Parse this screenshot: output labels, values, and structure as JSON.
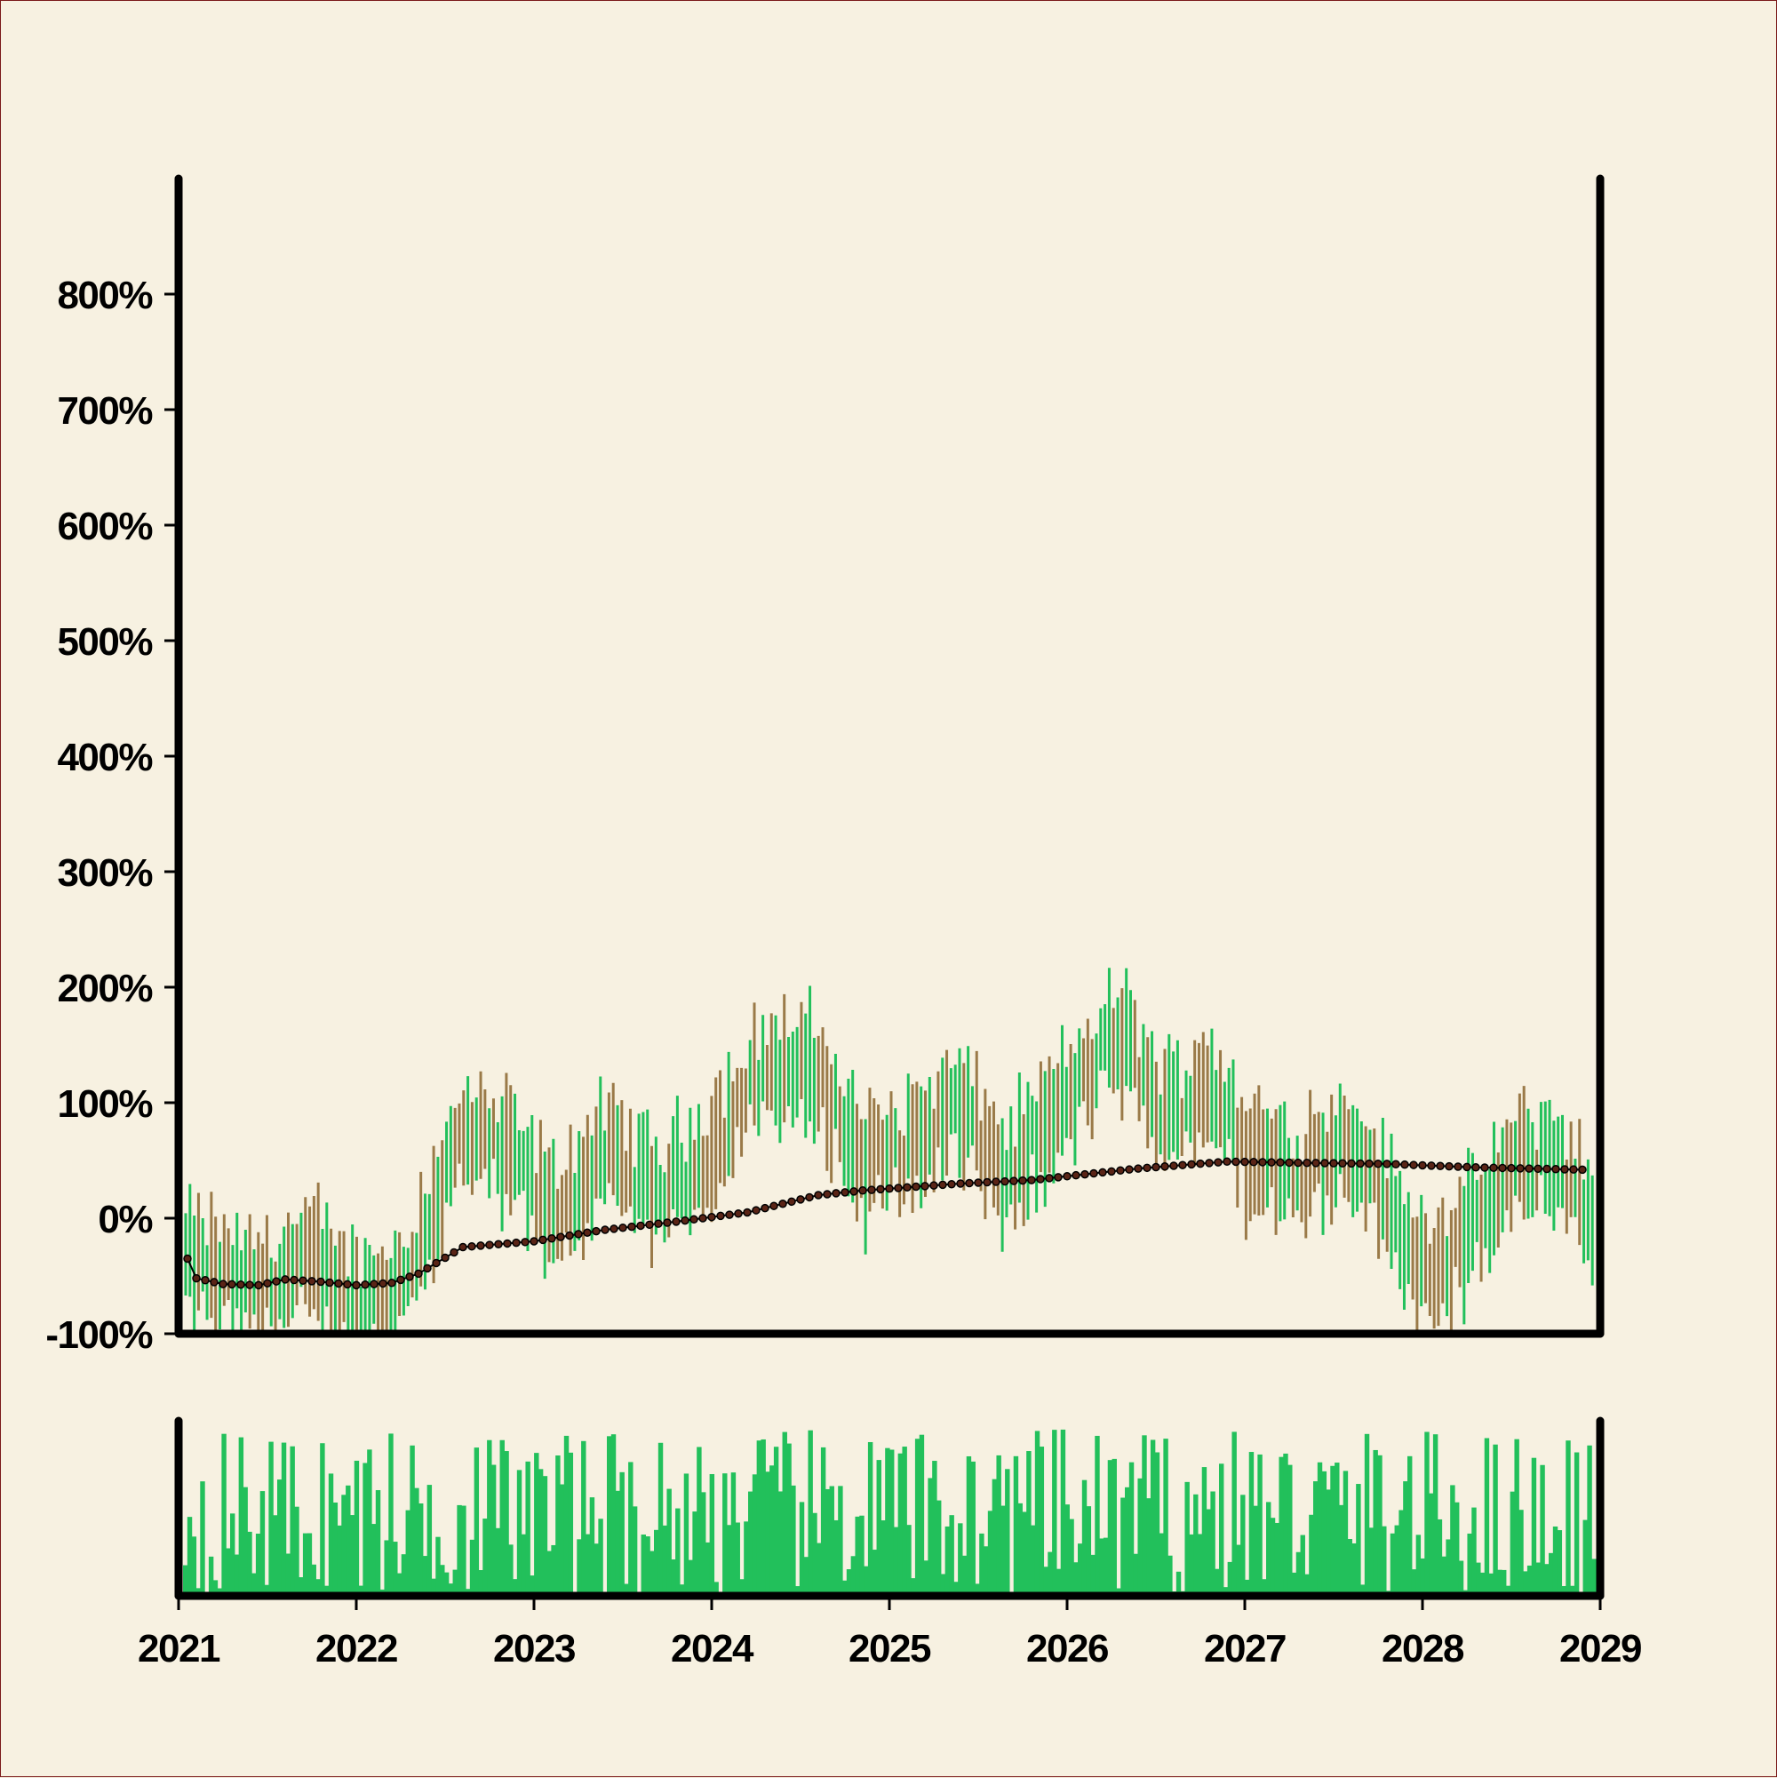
{
  "chart_data": [
    {
      "type": "ohlc",
      "panel": "price",
      "y_axis": {
        "ylim": [
          -100,
          900
        ],
        "ticks": [
          {
            "value": 800,
            "label": "800%"
          },
          {
            "value": 700,
            "label": "700%"
          },
          {
            "value": 600,
            "label": "600%"
          },
          {
            "value": 500,
            "label": "500%"
          },
          {
            "value": 400,
            "label": "400%"
          },
          {
            "value": 300,
            "label": "300%"
          },
          {
            "value": 200,
            "label": "200%"
          },
          {
            "value": 100,
            "label": "100%"
          },
          {
            "value": 0,
            "label": "0%"
          },
          {
            "value": -100,
            "label": "-100%"
          }
        ]
      },
      "x_axis": {
        "xlim": [
          2021,
          2029
        ],
        "ticks": [
          {
            "value": 2021,
            "label": "2021"
          },
          {
            "value": 2022,
            "label": "2022"
          },
          {
            "value": 2023,
            "label": "2023"
          },
          {
            "value": 2024,
            "label": "2024"
          },
          {
            "value": 2025,
            "label": "2025"
          },
          {
            "value": 2026,
            "label": "2026"
          },
          {
            "value": 2027,
            "label": "2027"
          },
          {
            "value": 2028,
            "label": "2028"
          },
          {
            "value": 2029,
            "label": "2029"
          }
        ]
      },
      "ohlc_trend_anchors": [
        [
          2021.0,
          -35
        ],
        [
          2021.4,
          -60
        ],
        [
          2021.8,
          -40
        ],
        [
          2022.0,
          -75
        ],
        [
          2022.25,
          -60
        ],
        [
          2022.6,
          70
        ],
        [
          2022.9,
          50
        ],
        [
          2023.1,
          0
        ],
        [
          2023.4,
          55
        ],
        [
          2023.7,
          20
        ],
        [
          2024.0,
          60
        ],
        [
          2024.3,
          130
        ],
        [
          2024.6,
          125
        ],
        [
          2024.85,
          45
        ],
        [
          2025.1,
          60
        ],
        [
          2025.4,
          95
        ],
        [
          2025.65,
          35
        ],
        [
          2026.0,
          100
        ],
        [
          2026.3,
          160
        ],
        [
          2026.55,
          85
        ],
        [
          2026.8,
          120
        ],
        [
          2027.0,
          55
        ],
        [
          2027.3,
          40
        ],
        [
          2027.6,
          70
        ],
        [
          2027.8,
          10
        ],
        [
          2028.0,
          -40
        ],
        [
          2028.2,
          -30
        ],
        [
          2028.5,
          40
        ],
        [
          2028.75,
          55
        ],
        [
          2029.0,
          -20
        ]
      ],
      "moving_average": [
        [
          2021.05,
          -35
        ],
        [
          2021.1,
          -52
        ],
        [
          2021.25,
          -57
        ],
        [
          2021.45,
          -58
        ],
        [
          2021.6,
          -53
        ],
        [
          2021.8,
          -55
        ],
        [
          2022.0,
          -58
        ],
        [
          2022.2,
          -56
        ],
        [
          2022.35,
          -48
        ],
        [
          2022.6,
          -25
        ],
        [
          2023.0,
          -20
        ],
        [
          2023.4,
          -10
        ],
        [
          2023.8,
          -3
        ],
        [
          2024.2,
          5
        ],
        [
          2024.6,
          20
        ],
        [
          2024.85,
          24
        ],
        [
          2025.4,
          30
        ],
        [
          2025.8,
          33
        ],
        [
          2026.4,
          43
        ],
        [
          2026.9,
          49
        ],
        [
          2027.3,
          48
        ],
        [
          2027.8,
          47
        ],
        [
          2028.3,
          44
        ],
        [
          2028.9,
          42
        ]
      ],
      "up_color": "#22c05b",
      "down_color": "#9a7a48",
      "ma_color": "#000000",
      "ma_marker_fill": "#5a2416"
    },
    {
      "type": "bar",
      "panel": "volume",
      "color": "#22c05b",
      "volume_min_fraction": 0.0,
      "volume_max_fraction": 0.95
    }
  ]
}
